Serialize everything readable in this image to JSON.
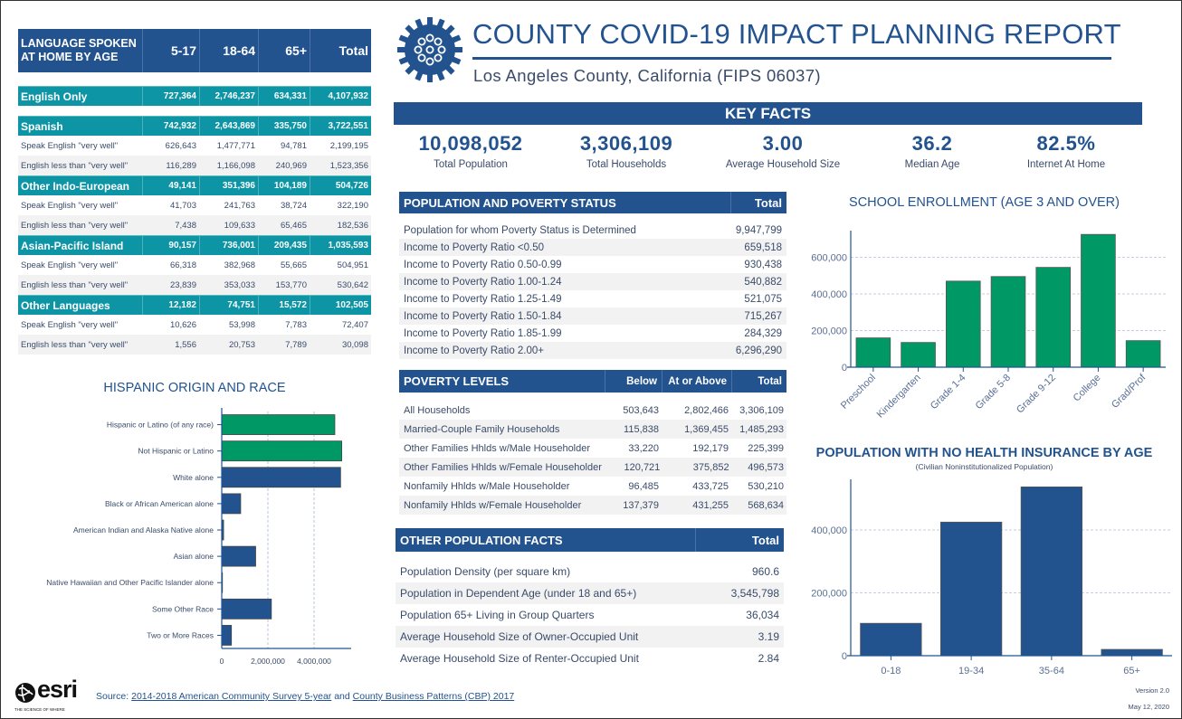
{
  "header": {
    "title": "COUNTY COVID-19 IMPACT PLANNING REPORT",
    "subtitle": "Los Angeles County, California (FIPS 06037)"
  },
  "key_facts": {
    "title": "KEY FACTS",
    "items": [
      {
        "value": "10,098,052",
        "label": "Total Population"
      },
      {
        "value": "3,306,109",
        "label": "Total Households"
      },
      {
        "value": "3.00",
        "label": "Average Household Size"
      },
      {
        "value": "36.2",
        "label": "Median Age"
      },
      {
        "value": "82.5%",
        "label": "Internet At Home"
      }
    ]
  },
  "language": {
    "title": "LANGUAGE SPOKEN AT HOME BY AGE",
    "columns": [
      "5-17",
      "18-64",
      "65+",
      "Total"
    ],
    "rows": [
      {
        "type": "group",
        "label": "English Only",
        "values": [
          "727,364",
          "2,746,237",
          "634,331",
          "4,107,932"
        ]
      },
      {
        "type": "group",
        "label": "Spanish",
        "values": [
          "742,932",
          "2,643,869",
          "335,750",
          "3,722,551"
        ]
      },
      {
        "type": "sub",
        "label": "Speak English \"very well\"",
        "values": [
          "626,643",
          "1,477,771",
          "94,781",
          "2,199,195"
        ]
      },
      {
        "type": "sub",
        "label": "English less than \"very well\"",
        "values": [
          "116,289",
          "1,166,098",
          "240,969",
          "1,523,356"
        ]
      },
      {
        "type": "group",
        "label": "Other Indo-European",
        "values": [
          "49,141",
          "351,396",
          "104,189",
          "504,726"
        ]
      },
      {
        "type": "sub",
        "label": "Speak English \"very well\"",
        "values": [
          "41,703",
          "241,763",
          "38,724",
          "322,190"
        ]
      },
      {
        "type": "sub",
        "label": "English less than \"very well\"",
        "values": [
          "7,438",
          "109,633",
          "65,465",
          "182,536"
        ]
      },
      {
        "type": "group",
        "label": "Asian-Pacific Island",
        "values": [
          "90,157",
          "736,001",
          "209,435",
          "1,035,593"
        ]
      },
      {
        "type": "sub",
        "label": "Speak English \"very well\"",
        "values": [
          "66,318",
          "382,968",
          "55,665",
          "504,951"
        ]
      },
      {
        "type": "sub",
        "label": "English less than \"very well\"",
        "values": [
          "23,839",
          "353,033",
          "153,770",
          "530,642"
        ]
      },
      {
        "type": "group",
        "label": "Other Languages",
        "values": [
          "12,182",
          "74,751",
          "15,572",
          "102,505"
        ]
      },
      {
        "type": "sub",
        "label": "Speak English \"very well\"",
        "values": [
          "10,626",
          "53,998",
          "7,783",
          "72,407"
        ]
      },
      {
        "type": "sub",
        "label": "English less than \"very well\"",
        "values": [
          "1,556",
          "20,753",
          "7,789",
          "30,098"
        ]
      }
    ]
  },
  "poverty_status": {
    "title": "POPULATION AND POVERTY STATUS",
    "column": "Total",
    "rows": [
      {
        "label": "Population for whom Poverty Status is Determined",
        "value": "9,947,799"
      },
      {
        "label": "Income to Poverty Ratio <0.50",
        "value": "659,518"
      },
      {
        "label": "Income to Poverty Ratio 0.50-0.99",
        "value": "930,438"
      },
      {
        "label": "Income to Poverty Ratio 1.00-1.24",
        "value": "540,882"
      },
      {
        "label": "Income to Poverty Ratio 1.25-1.49",
        "value": "521,075"
      },
      {
        "label": "Income to Poverty Ratio 1.50-1.84",
        "value": "715,267"
      },
      {
        "label": "Income to Poverty Ratio 1.85-1.99",
        "value": "284,329"
      },
      {
        "label": "Income to Poverty Ratio 2.00+",
        "value": "6,296,290"
      }
    ]
  },
  "poverty_levels": {
    "title": "POVERTY LEVELS",
    "columns": [
      "Below",
      "At or Above",
      "Total"
    ],
    "rows": [
      {
        "label": "All Households",
        "values": [
          "503,643",
          "2,802,466",
          "3,306,109"
        ]
      },
      {
        "label": "Married-Couple Family Households",
        "values": [
          "115,838",
          "1,369,455",
          "1,485,293"
        ]
      },
      {
        "label": "Other Families Hhlds w/Male Householder",
        "values": [
          "33,220",
          "192,179",
          "225,399"
        ]
      },
      {
        "label": "Other Families Hhlds w/Female Householder",
        "values": [
          "120,721",
          "375,852",
          "496,573"
        ]
      },
      {
        "label": "Nonfamily Hhlds w/Male Householder",
        "values": [
          "96,485",
          "433,725",
          "530,210"
        ]
      },
      {
        "label": "Nonfamily Hhlds w/Female Householder",
        "values": [
          "137,379",
          "431,255",
          "568,634"
        ]
      }
    ]
  },
  "other_facts": {
    "title": "OTHER POPULATION FACTS",
    "column": "Total",
    "rows": [
      {
        "label": "Population Density (per square km)",
        "value": "960.6"
      },
      {
        "label": "Population in Dependent Age (under 18 and 65+)",
        "value": "3,545,798"
      },
      {
        "label": "Population 65+ Living in Group Quarters",
        "value": "36,034"
      },
      {
        "label": "Average Household Size of Owner-Occupied Unit",
        "value": "3.19"
      },
      {
        "label": "Average Household Size of Renter-Occupied Unit",
        "value": "2.84"
      }
    ]
  },
  "chart_data": [
    {
      "type": "bar",
      "orientation": "horizontal",
      "title": "HISPANIC ORIGIN AND RACE",
      "categories": [
        "Hispanic or Latino (of any race)",
        "Not Hispanic or Latino",
        "White alone",
        "Black or African American alone",
        "American Indian and Alaska Native alone",
        "Asian alone",
        "Native Hawaiian and Other Pacific Islander alone",
        "Some Other Race",
        "Two or More Races"
      ],
      "values": [
        4900000,
        5200000,
        5150000,
        820000,
        80000,
        1470000,
        30000,
        2150000,
        420000
      ],
      "colors": [
        "#009966",
        "#009966",
        "#22538f",
        "#22538f",
        "#22538f",
        "#22538f",
        "#22538f",
        "#22538f",
        "#22538f"
      ],
      "xlim": [
        0,
        5600000
      ],
      "ticks": [
        "0",
        "2,000,000",
        "4,000,000"
      ],
      "tick_values": [
        0,
        2000000,
        4000000
      ],
      "grid": true
    },
    {
      "type": "bar",
      "title": "SCHOOL ENROLLMENT (AGE 3 AND OVER)",
      "categories": [
        "Preschool",
        "Kindergarten",
        "Grade 1-4",
        "Grade 5-8",
        "Grade 9-12",
        "College",
        "Grad/Prof"
      ],
      "values": [
        160000,
        135000,
        470000,
        495000,
        545000,
        725000,
        145000
      ],
      "color": "#009966",
      "ylim": [
        0,
        760000
      ],
      "ticks": [
        "0",
        "200,000",
        "400,000",
        "600,000"
      ],
      "tick_values": [
        0,
        200000,
        400000,
        600000
      ],
      "grid": true
    },
    {
      "type": "bar",
      "title": "POPULATION WITH NO HEALTH INSURANCE BY AGE",
      "subtitle": "(Civilian Noninstitutionalized Population)",
      "categories": [
        "0-18",
        "19-34",
        "35-64",
        "65+"
      ],
      "values": [
        103000,
        425000,
        537000,
        20000
      ],
      "color": "#22538f",
      "ylim": [
        0,
        565000
      ],
      "ticks": [
        "0",
        "200,000",
        "400,000"
      ],
      "tick_values": [
        0,
        200000,
        400000
      ],
      "grid": true
    }
  ],
  "footer": {
    "source_prefix": "Source: ",
    "source_link1": "2014-2018 American Community Survey 5-year",
    "source_and": " and ",
    "source_link2": "County Business Patterns (CBP) 2017",
    "version": "Version 2.0",
    "date": "May 12, 2020",
    "logo_text": "esri",
    "logo_tagline": "THE SCIENCE OF WHERE"
  }
}
